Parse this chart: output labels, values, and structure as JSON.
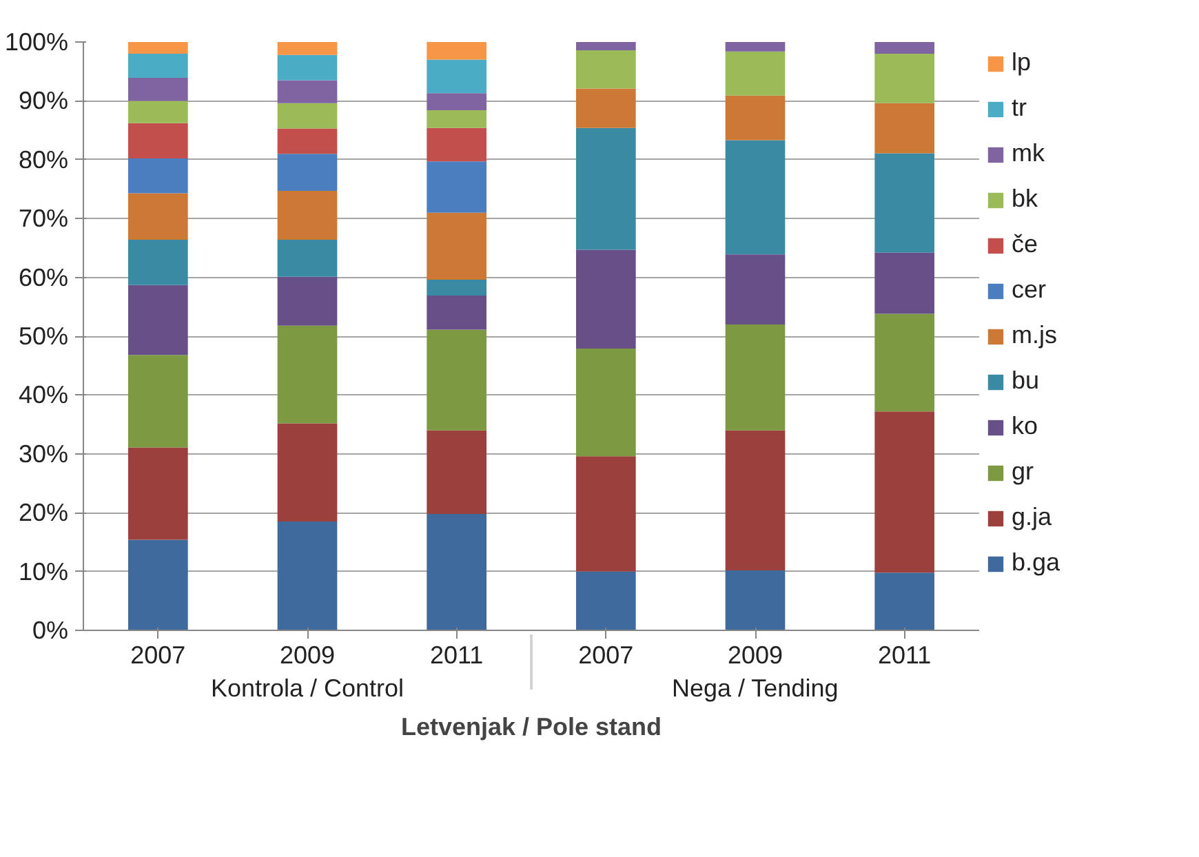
{
  "chart_data": {
    "type": "bar",
    "stacked": true,
    "xlabel": "Letvenjak / Pole stand",
    "categories": [
      "2007",
      "2009",
      "2011",
      "2007",
      "2009",
      "2011"
    ],
    "annotations": [
      "Kontrola / Control",
      "Nega / Tending"
    ],
    "ylim": [
      0,
      100
    ],
    "yticks": [
      {
        "value": 0,
        "label": "0%"
      },
      {
        "value": 10,
        "label": "10%"
      },
      {
        "value": 20,
        "label": "20%"
      },
      {
        "value": 30,
        "label": "30%"
      },
      {
        "value": 40,
        "label": "40%"
      },
      {
        "value": 50,
        "label": "50%"
      },
      {
        "value": 60,
        "label": "60%"
      },
      {
        "value": 70,
        "label": "70%"
      },
      {
        "value": 80,
        "label": "80%"
      },
      {
        "value": 90,
        "label": "90%"
      },
      {
        "value": 100,
        "label": "100%"
      }
    ],
    "grid": "y",
    "legend": "right",
    "series": [
      {
        "name": "b.ga",
        "color": "#3f6a9e",
        "values": [
          15.4,
          18.5,
          19.8,
          10.0,
          10.2,
          9.8
        ]
      },
      {
        "name": "g.ja",
        "color": "#9c403e",
        "values": [
          15.7,
          16.7,
          14.2,
          19.6,
          23.8,
          27.4
        ]
      },
      {
        "name": "gr",
        "color": "#7d9a42",
        "values": [
          15.7,
          16.6,
          17.1,
          18.3,
          18.0,
          16.6
        ]
      },
      {
        "name": "ko",
        "color": "#674f87",
        "values": [
          11.9,
          8.3,
          5.8,
          16.8,
          11.9,
          10.4
        ]
      },
      {
        "name": "bu",
        "color": "#3a8aa3",
        "values": [
          7.7,
          6.3,
          2.7,
          20.7,
          19.4,
          16.9
        ]
      },
      {
        "name": "m.js",
        "color": "#cc7935",
        "values": [
          7.9,
          8.3,
          11.4,
          6.7,
          7.6,
          8.5
        ]
      },
      {
        "name": "cer",
        "color": "#4a7ebe",
        "values": [
          5.9,
          6.3,
          8.7,
          0,
          0,
          0
        ]
      },
      {
        "name": "če",
        "color": "#c24f4c",
        "values": [
          6.0,
          4.3,
          5.7,
          0,
          0,
          0
        ]
      },
      {
        "name": "bk",
        "color": "#9bbb59",
        "values": [
          3.8,
          4.3,
          3.0,
          6.5,
          7.5,
          8.4
        ]
      },
      {
        "name": "mk",
        "color": "#8064a2",
        "values": [
          3.9,
          3.9,
          2.9,
          1.4,
          1.6,
          2.0
        ]
      },
      {
        "name": "tr",
        "color": "#4bacc6",
        "values": [
          4.1,
          4.3,
          5.7,
          0,
          0,
          0
        ]
      },
      {
        "name": "lp",
        "color": "#f79646",
        "values": [
          2.0,
          2.2,
          3.0,
          0,
          0,
          0
        ]
      }
    ]
  }
}
